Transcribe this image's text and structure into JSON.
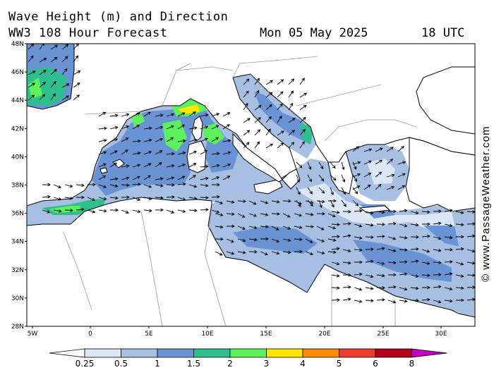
{
  "header": {
    "title": "Wave Height (m) and Direction",
    "subtitle": "WW3 108 Hour Forecast",
    "date": "Mon 05 May 2025",
    "time": "18 UTC"
  },
  "credit": "© www.PassageWeather.com",
  "axes": {
    "lat_labels": [
      "48N",
      "46N",
      "44N",
      "42N",
      "40N",
      "38N",
      "36N",
      "34N",
      "32N",
      "30N",
      "28N"
    ],
    "lon_labels": [
      "5W",
      "0",
      "5E",
      "10E",
      "15E",
      "20E",
      "25E",
      "30E"
    ]
  },
  "legend": {
    "labels": [
      "0.25",
      "0.5",
      "1",
      "1.5",
      "2",
      "3",
      "4",
      "5",
      "6",
      "8"
    ],
    "colors": [
      "#ffffff",
      "#dce6f5",
      "#a6bfe3",
      "#6a93d4",
      "#2fbf8f",
      "#5df25d",
      "#ffe600",
      "#ff8c00",
      "#ef3b2c",
      "#b3001b",
      "#c400c4"
    ]
  },
  "colors": {
    "land": "#ffffff",
    "coast": "#000000",
    "borders": "#9a9a9a",
    "arrows": "#000000"
  }
}
